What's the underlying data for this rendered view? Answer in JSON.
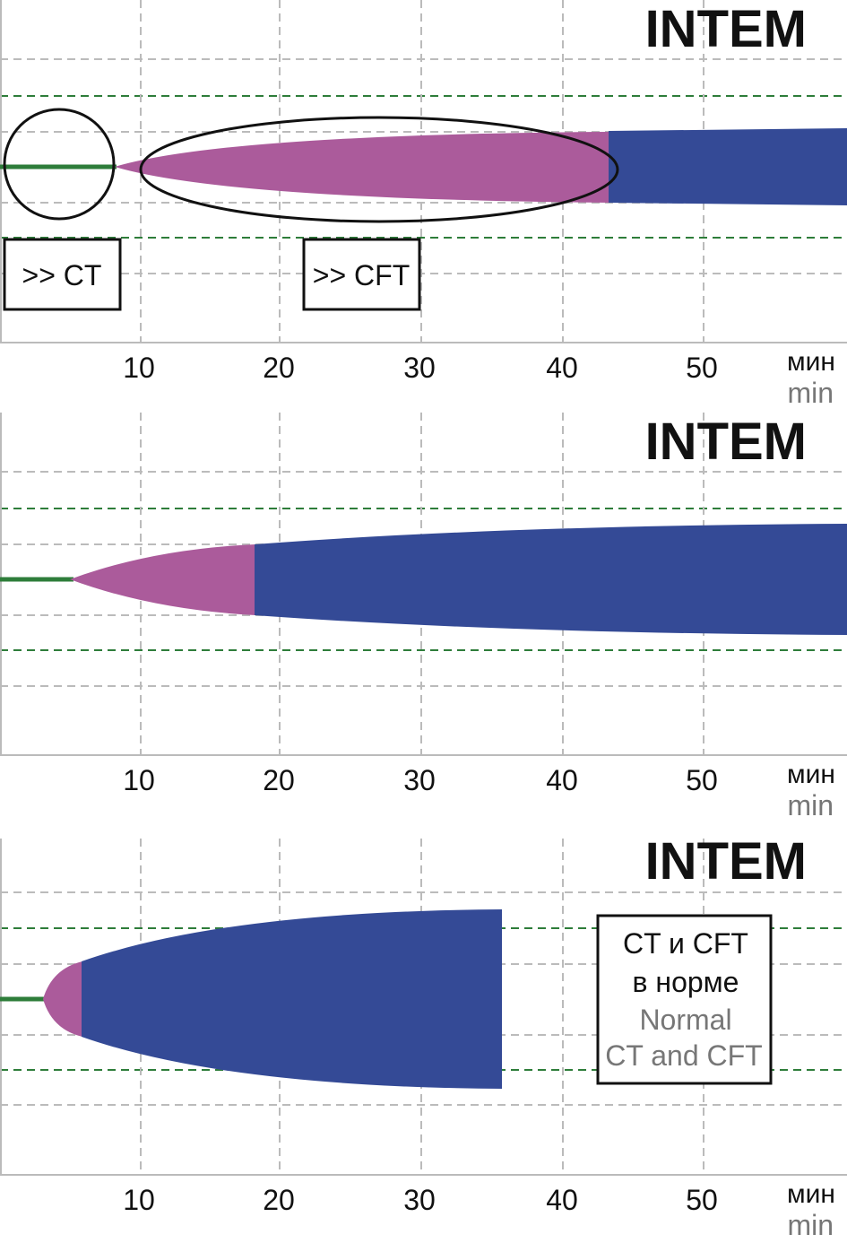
{
  "chart_data": [
    {
      "type": "area",
      "title": "INTEM",
      "x_ticks": [
        "10",
        "20",
        "30",
        "40",
        "50"
      ],
      "x_unit_ru": "мин",
      "x_unit_en": "min",
      "xlim": [
        0,
        60
      ],
      "colors": {
        "baseline": "#2e7d3a",
        "ct_phase": "#ab5b9b",
        "cft_phase": "#344a96"
      },
      "phases": {
        "baseline_end": 8,
        "ct_end": 43.5,
        "amplitude_at_ct_end": 38,
        "max_amplitude": 42
      },
      "annotations": [
        {
          "shape": "circle",
          "label": ">> CT"
        },
        {
          "shape": "ellipse",
          "label": ">> CFT"
        }
      ]
    },
    {
      "type": "area",
      "title": "INTEM",
      "x_ticks": [
        "10",
        "20",
        "30",
        "40",
        "50"
      ],
      "x_unit_ru": "мин",
      "x_unit_en": "min",
      "xlim": [
        0,
        60
      ],
      "colors": {
        "baseline": "#2e7d3a",
        "ct_phase": "#ab5b9b",
        "cft_phase": "#344a96"
      },
      "phases": {
        "baseline_end": 5,
        "ct_end": 18,
        "amplitude_at_ct_end": 40,
        "max_amplitude": 62
      }
    },
    {
      "type": "area",
      "title": "INTEM",
      "x_ticks": [
        "10",
        "20",
        "30",
        "40",
        "50"
      ],
      "x_unit_ru": "мин",
      "x_unit_en": "min",
      "xlim": [
        0,
        60
      ],
      "colors": {
        "baseline": "#2e7d3a",
        "ct_phase": "#ab5b9b",
        "cft_phase": "#344a96"
      },
      "phases": {
        "baseline_end": 3,
        "ct_end": 5.7,
        "amplitude_at_ct_end": 42,
        "max_amplitude": 100,
        "trace_end": 35.5
      },
      "note": {
        "line1": "CT и CFT",
        "line2": "в норме",
        "line3": "Normal",
        "line4": "CT and CFT"
      }
    }
  ]
}
